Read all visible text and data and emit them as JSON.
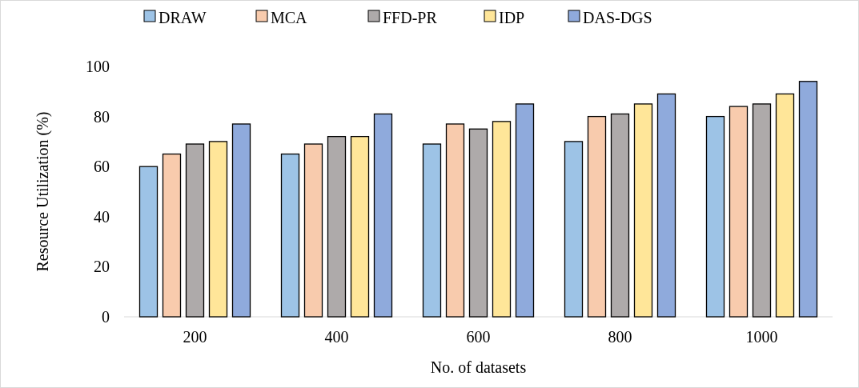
{
  "chart_data": {
    "type": "bar",
    "xlabel": "No. of datasets",
    "ylabel": "Resource Utilization (%)",
    "categories": [
      "200",
      "400",
      "600",
      "800",
      "1000"
    ],
    "series": [
      {
        "name": "DRAW",
        "color": "#9dc3e6",
        "values": [
          60,
          65,
          69,
          70,
          80
        ]
      },
      {
        "name": "MCA",
        "color": "#f8cbad",
        "values": [
          65,
          69,
          77,
          80,
          84
        ]
      },
      {
        "name": "FFD-PR",
        "color": "#aeaaaa",
        "values": [
          69,
          72,
          75,
          81,
          85
        ]
      },
      {
        "name": "IDP",
        "color": "#ffe699",
        "values": [
          70,
          72,
          78,
          85,
          89
        ]
      },
      {
        "name": "DAS-DGS",
        "color": "#8faadc",
        "values": [
          77,
          81,
          85,
          89,
          94
        ]
      }
    ],
    "ylim": [
      0,
      100
    ],
    "yticks": [
      0,
      20,
      40,
      60,
      80,
      100
    ],
    "legend": "top",
    "grid": false
  }
}
